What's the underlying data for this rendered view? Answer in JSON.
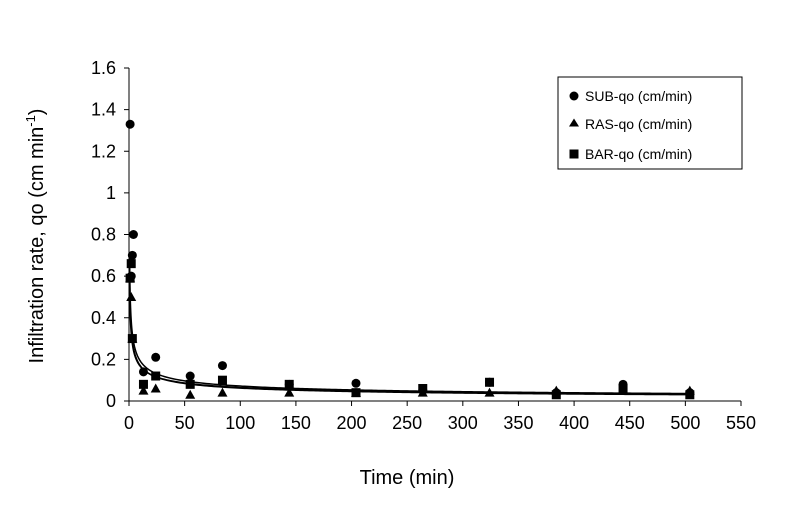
{
  "chart_data": {
    "type": "scatter",
    "xlabel": "Time (min)",
    "ylabel": "Infiltration rate, qo (cm min",
    "ylabel_sup": "-1",
    "ylabel_close": ")",
    "xlim": [
      0,
      550
    ],
    "ylim": [
      0,
      1.6
    ],
    "xticks": [
      0,
      50,
      100,
      150,
      200,
      250,
      300,
      350,
      400,
      450,
      500,
      550
    ],
    "yticks": [
      0,
      0.2,
      0.4,
      0.6,
      0.8,
      1,
      1.2,
      1.4,
      1.6
    ],
    "xtick_labels": [
      "0",
      "50",
      "100",
      "150",
      "200",
      "250",
      "300",
      "350",
      "400",
      "450",
      "500",
      "550"
    ],
    "ytick_labels": [
      "0",
      "0.2",
      "0.4",
      "0.6",
      "0.8",
      "1",
      "1.2",
      "1.4",
      "1.6"
    ],
    "grid": false,
    "legend_position": "top-right",
    "series": [
      {
        "name": "SUB-qo (cm/min)",
        "marker": "circle",
        "color": "#000000",
        "points": [
          [
            1,
            1.33
          ],
          [
            2,
            0.6
          ],
          [
            3,
            0.7
          ],
          [
            4,
            0.8
          ],
          [
            13,
            0.14
          ],
          [
            24,
            0.21
          ],
          [
            55,
            0.12
          ],
          [
            84,
            0.17
          ],
          [
            144,
            0.08
          ],
          [
            204,
            0.085
          ],
          [
            264,
            0.05
          ],
          [
            324,
            0.09
          ],
          [
            384,
            0.04
          ],
          [
            444,
            0.08
          ],
          [
            504,
            0.04
          ]
        ],
        "fit": {
          "a": 0.52,
          "b": 0.43
        }
      },
      {
        "name": "RAS-qo (cm/min)",
        "marker": "triangle",
        "color": "#000000",
        "points": [
          [
            1,
            0.59
          ],
          [
            2,
            0.5
          ],
          [
            3,
            0.3
          ],
          [
            13,
            0.05
          ],
          [
            24,
            0.06
          ],
          [
            55,
            0.03
          ],
          [
            84,
            0.04
          ],
          [
            144,
            0.04
          ],
          [
            204,
            0.04
          ],
          [
            264,
            0.04
          ],
          [
            324,
            0.04
          ],
          [
            384,
            0.05
          ],
          [
            444,
            0.05
          ],
          [
            504,
            0.05
          ]
        ],
        "fit": {
          "a": 0.43,
          "b": 0.41
        }
      },
      {
        "name": "BAR-qo (cm/min)",
        "marker": "square",
        "color": "#000000",
        "points": [
          [
            1,
            0.59
          ],
          [
            2,
            0.66
          ],
          [
            3,
            0.3
          ],
          [
            13,
            0.08
          ],
          [
            24,
            0.12
          ],
          [
            55,
            0.08
          ],
          [
            84,
            0.1
          ],
          [
            144,
            0.08
          ],
          [
            204,
            0.04
          ],
          [
            264,
            0.06
          ],
          [
            324,
            0.09
          ],
          [
            384,
            0.03
          ],
          [
            444,
            0.06
          ],
          [
            504,
            0.03
          ]
        ],
        "fit": {
          "a": 0.47,
          "b": 0.44
        }
      }
    ]
  }
}
